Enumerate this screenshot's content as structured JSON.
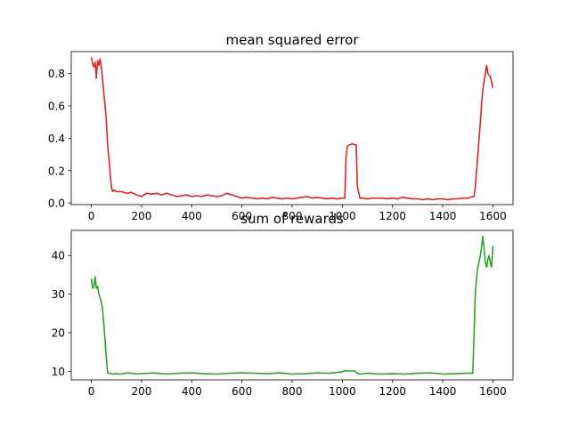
{
  "chart_data": [
    {
      "type": "line",
      "title": "mean squared error",
      "xlabel": "",
      "ylabel": "",
      "xlim": [
        -80,
        1680
      ],
      "ylim": [
        -0.01,
        0.935
      ],
      "xticks": [
        0,
        200,
        400,
        600,
        800,
        1000,
        1200,
        1400,
        1600
      ],
      "yticks": [
        0.0,
        0.2,
        0.4,
        0.6,
        0.8
      ],
      "xtick_labels": [
        "0",
        "200",
        "400",
        "600",
        "800",
        "1000",
        "1200",
        "1400",
        "1600"
      ],
      "ytick_labels": [
        "0.0",
        "0.2",
        "0.4",
        "0.6",
        "0.8"
      ],
      "grid": false,
      "series": [
        {
          "color": "#d62728",
          "x": [
            0,
            5,
            10,
            15,
            20,
            25,
            30,
            35,
            40,
            45,
            50,
            55,
            60,
            65,
            70,
            75,
            80,
            85,
            90,
            100,
            120,
            140,
            160,
            180,
            200,
            220,
            240,
            260,
            280,
            300,
            320,
            340,
            360,
            380,
            400,
            420,
            440,
            460,
            480,
            500,
            520,
            540,
            560,
            580,
            600,
            620,
            640,
            660,
            680,
            700,
            720,
            740,
            760,
            780,
            800,
            820,
            840,
            860,
            880,
            900,
            920,
            940,
            960,
            980,
            1000,
            1010,
            1015,
            1020,
            1030,
            1040,
            1050,
            1055,
            1060,
            1070,
            1080,
            1100,
            1120,
            1140,
            1160,
            1180,
            1200,
            1220,
            1240,
            1260,
            1280,
            1300,
            1320,
            1340,
            1360,
            1380,
            1400,
            1420,
            1440,
            1460,
            1480,
            1500,
            1520,
            1525,
            1530,
            1540,
            1550,
            1555,
            1560,
            1570,
            1575,
            1580,
            1590,
            1600
          ],
          "y": [
            0.9,
            0.86,
            0.84,
            0.87,
            0.77,
            0.88,
            0.85,
            0.89,
            0.84,
            0.76,
            0.68,
            0.6,
            0.5,
            0.35,
            0.28,
            0.18,
            0.1,
            0.07,
            0.08,
            0.07,
            0.07,
            0.06,
            0.065,
            0.05,
            0.04,
            0.06,
            0.055,
            0.06,
            0.05,
            0.06,
            0.05,
            0.04,
            0.045,
            0.05,
            0.04,
            0.045,
            0.04,
            0.05,
            0.045,
            0.04,
            0.045,
            0.06,
            0.05,
            0.04,
            0.03,
            0.035,
            0.03,
            0.025,
            0.03,
            0.025,
            0.035,
            0.03,
            0.025,
            0.03,
            0.025,
            0.03,
            0.035,
            0.04,
            0.03,
            0.035,
            0.03,
            0.025,
            0.03,
            0.025,
            0.03,
            0.03,
            0.29,
            0.35,
            0.36,
            0.365,
            0.36,
            0.36,
            0.1,
            0.03,
            0.03,
            0.025,
            0.03,
            0.03,
            0.03,
            0.025,
            0.03,
            0.025,
            0.035,
            0.03,
            0.025,
            0.025,
            0.02,
            0.025,
            0.02,
            0.025,
            0.025,
            0.02,
            0.025,
            0.025,
            0.03,
            0.03,
            0.04,
            0.04,
            0.1,
            0.3,
            0.5,
            0.62,
            0.7,
            0.8,
            0.85,
            0.8,
            0.78,
            0.71
          ]
        }
      ]
    },
    {
      "type": "line",
      "title": "sum of rewards",
      "xlabel": "",
      "ylabel": "",
      "xlim": [
        -80,
        1680
      ],
      "ylim": [
        7.8,
        46.5
      ],
      "xticks": [
        0,
        200,
        400,
        600,
        800,
        1000,
        1200,
        1400,
        1600
      ],
      "yticks": [
        10,
        20,
        30,
        40
      ],
      "xtick_labels": [
        "0",
        "200",
        "400",
        "600",
        "800",
        "1000",
        "1200",
        "1400",
        "1600"
      ],
      "ytick_labels": [
        "10",
        "20",
        "30",
        "40"
      ],
      "grid": false,
      "series": [
        {
          "color": "#2ca02c",
          "x": [
            0,
            5,
            10,
            15,
            20,
            25,
            30,
            35,
            40,
            45,
            50,
            55,
            60,
            65,
            70,
            75,
            80,
            85,
            100,
            120,
            140,
            160,
            180,
            200,
            250,
            300,
            350,
            400,
            450,
            500,
            550,
            600,
            650,
            700,
            750,
            800,
            850,
            900,
            950,
            1000,
            1010,
            1020,
            1040,
            1050,
            1060,
            1070,
            1100,
            1150,
            1200,
            1250,
            1300,
            1350,
            1400,
            1450,
            1500,
            1520,
            1525,
            1530,
            1535,
            1540,
            1550,
            1560,
            1570,
            1575,
            1580,
            1585,
            1590,
            1595,
            1600
          ],
          "y": [
            34,
            31.5,
            32,
            34.5,
            31.5,
            32,
            30,
            29,
            28,
            26,
            22,
            18,
            13,
            9.5,
            9.5,
            9.4,
            9.4,
            9.3,
            9.4,
            9.3,
            9.6,
            9.5,
            9.3,
            9.4,
            9.6,
            9.3,
            9.5,
            9.6,
            9.4,
            9.3,
            9.5,
            9.6,
            9.5,
            9.4,
            9.6,
            9.3,
            9.4,
            9.6,
            9.5,
            9.9,
            10.2,
            10.1,
            10.1,
            10.1,
            9.5,
            9.3,
            9.5,
            9.3,
            9.4,
            9.3,
            9.5,
            9.6,
            9.3,
            9.4,
            9.5,
            9.5,
            20,
            30,
            34,
            37,
            40,
            45,
            38,
            37,
            39,
            40,
            38,
            37,
            42.5
          ]
        }
      ]
    }
  ]
}
